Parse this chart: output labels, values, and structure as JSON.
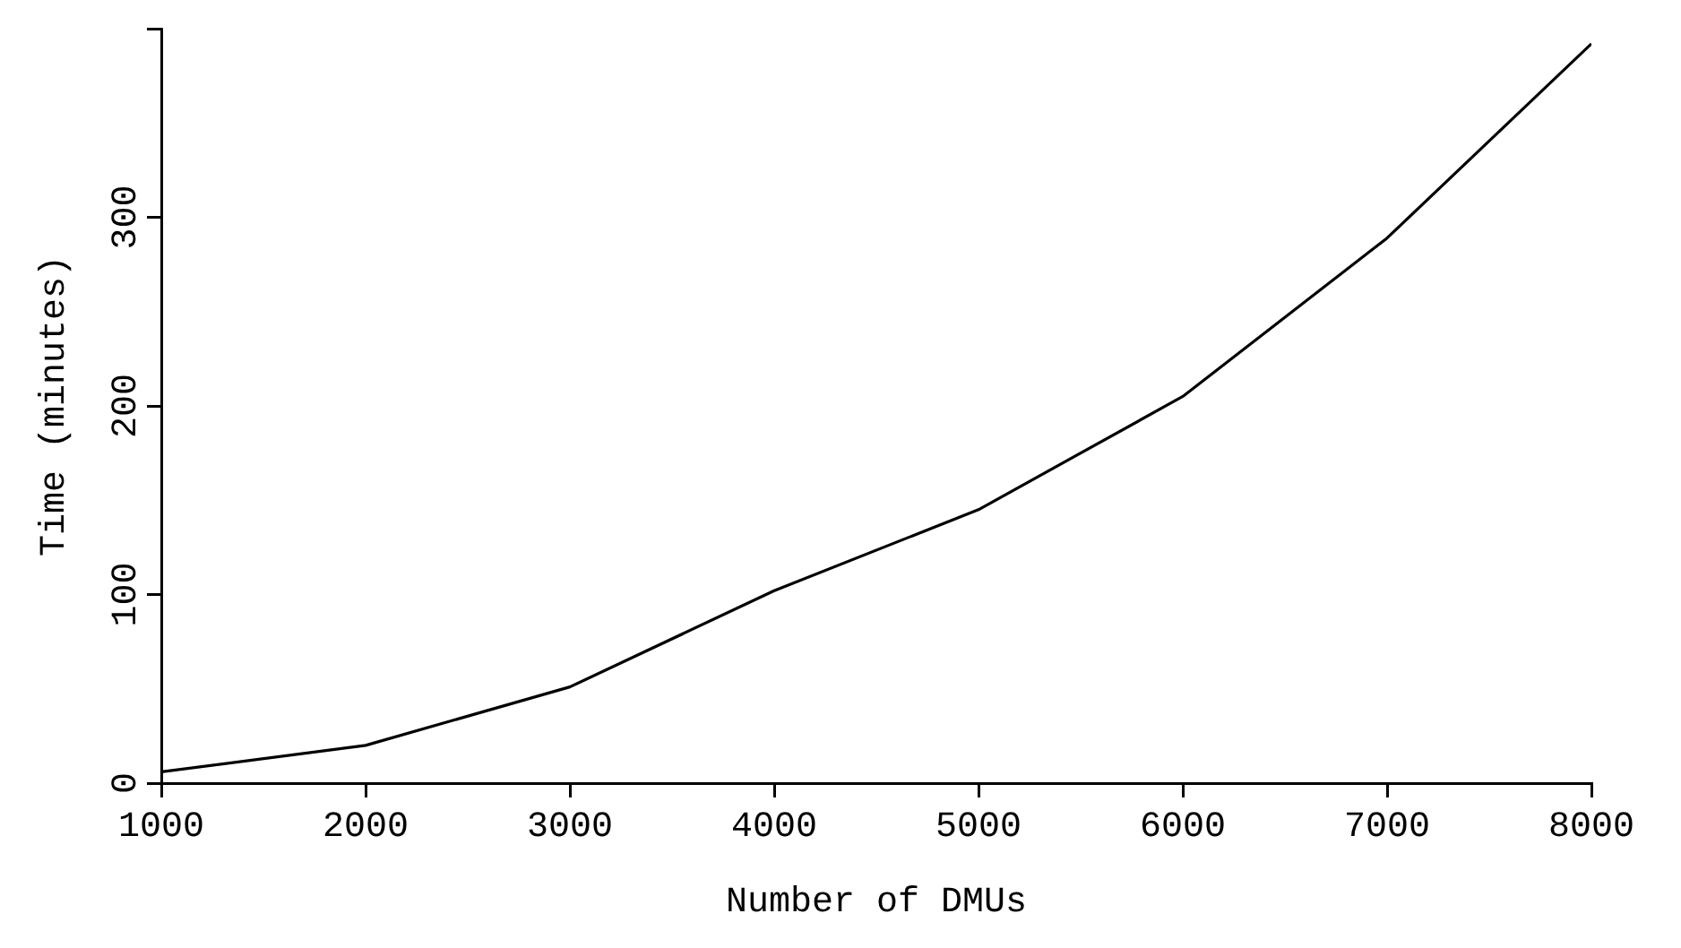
{
  "chart_data": {
    "type": "line",
    "xlabel": "Number of DMUs",
    "ylabel": "Time (minutes)",
    "x": [
      1000,
      2000,
      3000,
      4000,
      5000,
      6000,
      7000,
      8000
    ],
    "series": [
      {
        "color": "#000000",
        "values": [
          6,
          20,
          51,
          102,
          145,
          205,
          289,
          392
        ]
      }
    ],
    "xlim": [
      1000,
      8000
    ],
    "xticks": [
      1000,
      2000,
      3000,
      4000,
      5000,
      6000,
      7000,
      8000
    ],
    "ylim": [
      0,
      400
    ],
    "yticks": [
      0,
      100,
      200,
      300,
      {
        "value": 400,
        "label": null
      }
    ],
    "grid": false,
    "legend": false,
    "marker": "none",
    "line_style": "solid"
  }
}
